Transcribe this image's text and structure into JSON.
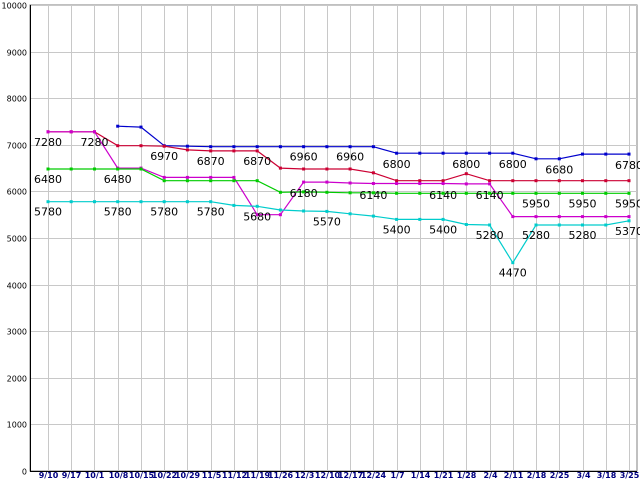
{
  "chart_data": {
    "type": "line",
    "title": "",
    "xlabel": "",
    "ylabel": "",
    "ylim": [
      0,
      10000
    ],
    "yticks": [
      0,
      1000,
      2000,
      3000,
      4000,
      5000,
      6000,
      7000,
      8000,
      9000,
      10000
    ],
    "grid": true,
    "legend": "none",
    "categories": [
      "9/10",
      "9/17",
      "10/1",
      "10/8",
      "10/15",
      "10/22",
      "10/29",
      "11/5",
      "11/12",
      "11/19",
      "11/26",
      "12/3",
      "12/10",
      "12/17",
      "12/24",
      "1/7",
      "1/14",
      "1/21",
      "1/28",
      "2/4",
      "2/11",
      "2/18",
      "2/25",
      "3/4",
      "3/18",
      "3/25"
    ],
    "series": [
      {
        "color": "#0000cc",
        "values": [
          null,
          null,
          null,
          7400,
          7380,
          6980,
          6970,
          6960,
          6960,
          6960,
          6960,
          6960,
          6960,
          6960,
          6960,
          6820,
          6820,
          6820,
          6820,
          6820,
          6820,
          6700,
          6700,
          6800,
          6800,
          6800
        ]
      },
      {
        "color": "#cc0033",
        "values": [
          7280,
          7280,
          7280,
          6980,
          6980,
          6970,
          6890,
          6870,
          6870,
          6870,
          6500,
          6480,
          6480,
          6480,
          6400,
          6230,
          6230,
          6230,
          6380,
          6230,
          6230,
          6230,
          6230,
          6230,
          6230,
          6230
        ]
      },
      {
        "color": "#cc00cc",
        "values": [
          7280,
          7280,
          7280,
          6500,
          6500,
          6300,
          6300,
          6300,
          6300,
          5500,
          5500,
          6200,
          6200,
          6180,
          6170,
          6170,
          6170,
          6170,
          6160,
          6160,
          5460,
          5460,
          5460,
          5460,
          5460,
          5460
        ]
      },
      {
        "color": "#00cc00",
        "values": [
          6480,
          6480,
          6480,
          6480,
          6480,
          6230,
          6230,
          6230,
          6230,
          6230,
          5980,
          5990,
          5980,
          5970,
          5970,
          5960,
          5960,
          5960,
          5960,
          5960,
          5960,
          5960,
          5960,
          5960,
          5960,
          5960
        ]
      },
      {
        "color": "#00cccc",
        "values": [
          5780,
          5780,
          5780,
          5780,
          5780,
          5780,
          5780,
          5780,
          5700,
          5680,
          5600,
          5580,
          5570,
          5520,
          5470,
          5400,
          5400,
          5400,
          5290,
          5280,
          4470,
          5280,
          5280,
          5280,
          5280,
          5370
        ]
      }
    ],
    "data_labels": [
      {
        "index": 0,
        "value": 7280,
        "text": "7280"
      },
      {
        "index": 2,
        "value": 7280,
        "text": "7280"
      },
      {
        "index": 5,
        "value": 6970,
        "text": "6970"
      },
      {
        "index": 7,
        "value": 6870,
        "text": "6870"
      },
      {
        "index": 9,
        "value": 6870,
        "text": "6870"
      },
      {
        "index": 11,
        "value": 6960,
        "text": "6960"
      },
      {
        "index": 13,
        "value": 6960,
        "text": "6960"
      },
      {
        "index": 15,
        "value": 6800,
        "text": "6800"
      },
      {
        "index": 18,
        "value": 6800,
        "text": "6800"
      },
      {
        "index": 20,
        "value": 6800,
        "text": "6800"
      },
      {
        "index": 22,
        "value": 6680,
        "text": "6680"
      },
      {
        "index": 25,
        "value": 6780,
        "text": "6780"
      },
      {
        "index": 0,
        "value": 6480,
        "text": "6480"
      },
      {
        "index": 3,
        "value": 6480,
        "text": "6480"
      },
      {
        "index": 11,
        "value": 6180,
        "text": "6180"
      },
      {
        "index": 14,
        "value": 6140,
        "text": "6140"
      },
      {
        "index": 17,
        "value": 6140,
        "text": "6140"
      },
      {
        "index": 19,
        "value": 6140,
        "text": "6140"
      },
      {
        "index": 21,
        "value": 5950,
        "text": "5950"
      },
      {
        "index": 23,
        "value": 5950,
        "text": "5950"
      },
      {
        "index": 25,
        "value": 5950,
        "text": "5950"
      },
      {
        "index": 0,
        "value": 5780,
        "text": "5780"
      },
      {
        "index": 3,
        "value": 5780,
        "text": "5780"
      },
      {
        "index": 5,
        "value": 5780,
        "text": "5780"
      },
      {
        "index": 7,
        "value": 5780,
        "text": "5780"
      },
      {
        "index": 9,
        "value": 5680,
        "text": "5680"
      },
      {
        "index": 12,
        "value": 5570,
        "text": "5570"
      },
      {
        "index": 15,
        "value": 5400,
        "text": "5400"
      },
      {
        "index": 17,
        "value": 5400,
        "text": "5400"
      },
      {
        "index": 19,
        "value": 5280,
        "text": "5280"
      },
      {
        "index": 21,
        "value": 5280,
        "text": "5280"
      },
      {
        "index": 23,
        "value": 5280,
        "text": "5280"
      },
      {
        "index": 25,
        "value": 5370,
        "text": "5370"
      },
      {
        "index": 20,
        "value": 4470,
        "text": "4470"
      }
    ]
  }
}
